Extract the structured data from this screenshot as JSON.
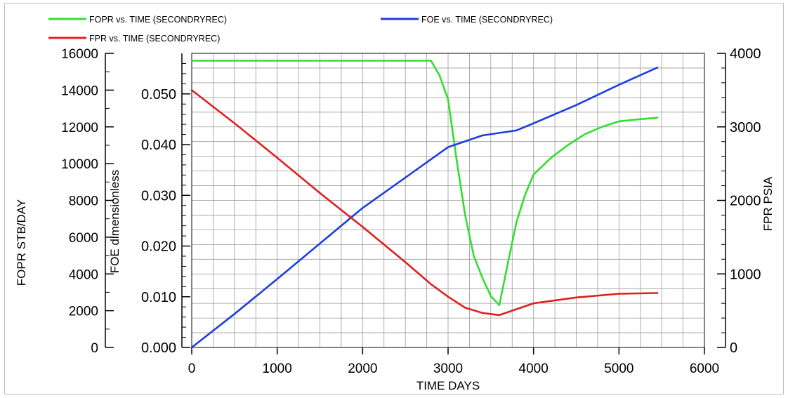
{
  "chart_data": {
    "type": "line",
    "x": {
      "label": "TIME   DAYS",
      "range": [
        0,
        6000
      ],
      "ticks": [
        "0",
        "1000",
        "2000",
        "3000",
        "4000",
        "5000",
        "6000"
      ]
    },
    "axes": {
      "fopr": {
        "label": "FOPR   STB/DAY",
        "range": [
          0,
          16000
        ],
        "ticks": [
          "0",
          "2000",
          "4000",
          "6000",
          "8000",
          "10000",
          "12000",
          "14000",
          "16000"
        ]
      },
      "foe": {
        "label": "FOE   dimensionless",
        "range": [
          0,
          0.058
        ],
        "ticks": [
          "0.000",
          "0.010",
          "0.020",
          "0.030",
          "0.040",
          "0.050"
        ]
      },
      "fpr": {
        "label": "FPR   PSIA",
        "range": [
          0,
          4000
        ],
        "ticks": [
          "0",
          "1000",
          "2000",
          "3000",
          "4000"
        ]
      }
    },
    "grid": true,
    "legend_position": "top",
    "series": [
      {
        "name": "FOPR  vs.  TIME (SECONDRYREC)",
        "axis": "fopr",
        "color": "#33dd33",
        "points": [
          [
            0,
            15600
          ],
          [
            2800,
            15600
          ],
          [
            2900,
            14800
          ],
          [
            3000,
            13500
          ],
          [
            3100,
            10200
          ],
          [
            3200,
            7200
          ],
          [
            3300,
            5000
          ],
          [
            3400,
            3800
          ],
          [
            3500,
            2800
          ],
          [
            3600,
            2300
          ],
          [
            3700,
            4600
          ],
          [
            3800,
            6800
          ],
          [
            3900,
            8300
          ],
          [
            4000,
            9400
          ],
          [
            4200,
            10300
          ],
          [
            4400,
            11000
          ],
          [
            4600,
            11600
          ],
          [
            4800,
            12000
          ],
          [
            5000,
            12300
          ],
          [
            5200,
            12400
          ],
          [
            5450,
            12500
          ]
        ]
      },
      {
        "name": "FOE  vs.  TIME (SECONDRYREC)",
        "axis": "foe",
        "color": "#1d3ee0",
        "points": [
          [
            0,
            0.0
          ],
          [
            500,
            0.0066
          ],
          [
            1000,
            0.0135
          ],
          [
            1500,
            0.0205
          ],
          [
            2000,
            0.0275
          ],
          [
            2500,
            0.0335
          ],
          [
            3000,
            0.0395
          ],
          [
            3400,
            0.0418
          ],
          [
            3600,
            0.0423
          ],
          [
            3800,
            0.0428
          ],
          [
            4000,
            0.0442
          ],
          [
            4500,
            0.0478
          ],
          [
            5000,
            0.0518
          ],
          [
            5450,
            0.0552
          ]
        ]
      },
      {
        "name": "FPR  vs.  TIME (SECONDRYREC)",
        "axis": "fpr",
        "color": "#e02020",
        "points": [
          [
            0,
            3500
          ],
          [
            500,
            3050
          ],
          [
            1000,
            2580
          ],
          [
            1500,
            2100
          ],
          [
            2000,
            1640
          ],
          [
            2500,
            1160
          ],
          [
            2800,
            860
          ],
          [
            3000,
            690
          ],
          [
            3200,
            540
          ],
          [
            3400,
            470
          ],
          [
            3600,
            440
          ],
          [
            3800,
            520
          ],
          [
            4000,
            600
          ],
          [
            4500,
            680
          ],
          [
            5000,
            730
          ],
          [
            5450,
            740
          ]
        ]
      }
    ]
  }
}
